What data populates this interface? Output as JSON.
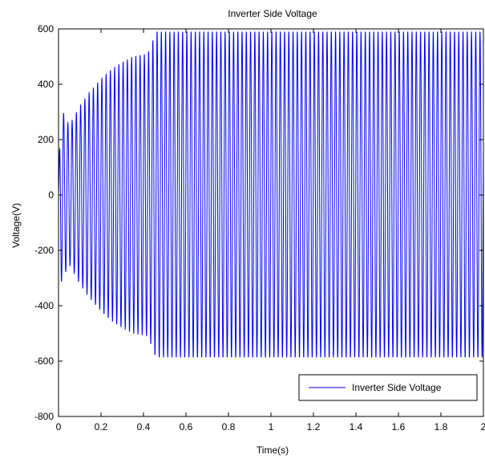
{
  "chart_data": {
    "type": "line",
    "title": "Inverter Side Voltage",
    "xlabel": "Time(s)",
    "ylabel": "Voltage(V)",
    "xlim": [
      0,
      2
    ],
    "ylim": [
      -800,
      600
    ],
    "x_ticks": [
      0,
      0.2,
      0.4,
      0.6,
      0.8,
      1,
      1.2,
      1.4,
      1.6,
      1.8,
      2
    ],
    "x_tick_labels": [
      "0",
      "0.2",
      "0.4",
      "0.6",
      "0.8",
      "1",
      "1.2",
      "1.4",
      "1.6",
      "1.8",
      "2"
    ],
    "y_ticks": [
      -800,
      -600,
      -400,
      -200,
      0,
      200,
      400,
      600
    ],
    "y_tick_labels": [
      "-800",
      "-600",
      "-400",
      "-200",
      "0",
      "200",
      "400",
      "600"
    ],
    "grid": false,
    "legend_position": "bottom-right",
    "series": [
      {
        "name": "Inverter Side Voltage",
        "color": "#0000ff",
        "signal": {
          "kind": "sinusoid",
          "frequency_hz": 50,
          "envelope": [
            [
              0,
              20
            ],
            [
              0.01,
              320
            ],
            [
              0.05,
              250
            ],
            [
              0.1,
              320
            ],
            [
              0.15,
              375
            ],
            [
              0.2,
              420
            ],
            [
              0.25,
              455
            ],
            [
              0.3,
              480
            ],
            [
              0.35,
              500
            ],
            [
              0.42,
              510
            ],
            [
              0.46,
              590
            ],
            [
              2,
              590
            ]
          ],
          "min_level": -600,
          "steady_min": -585
        }
      }
    ]
  }
}
